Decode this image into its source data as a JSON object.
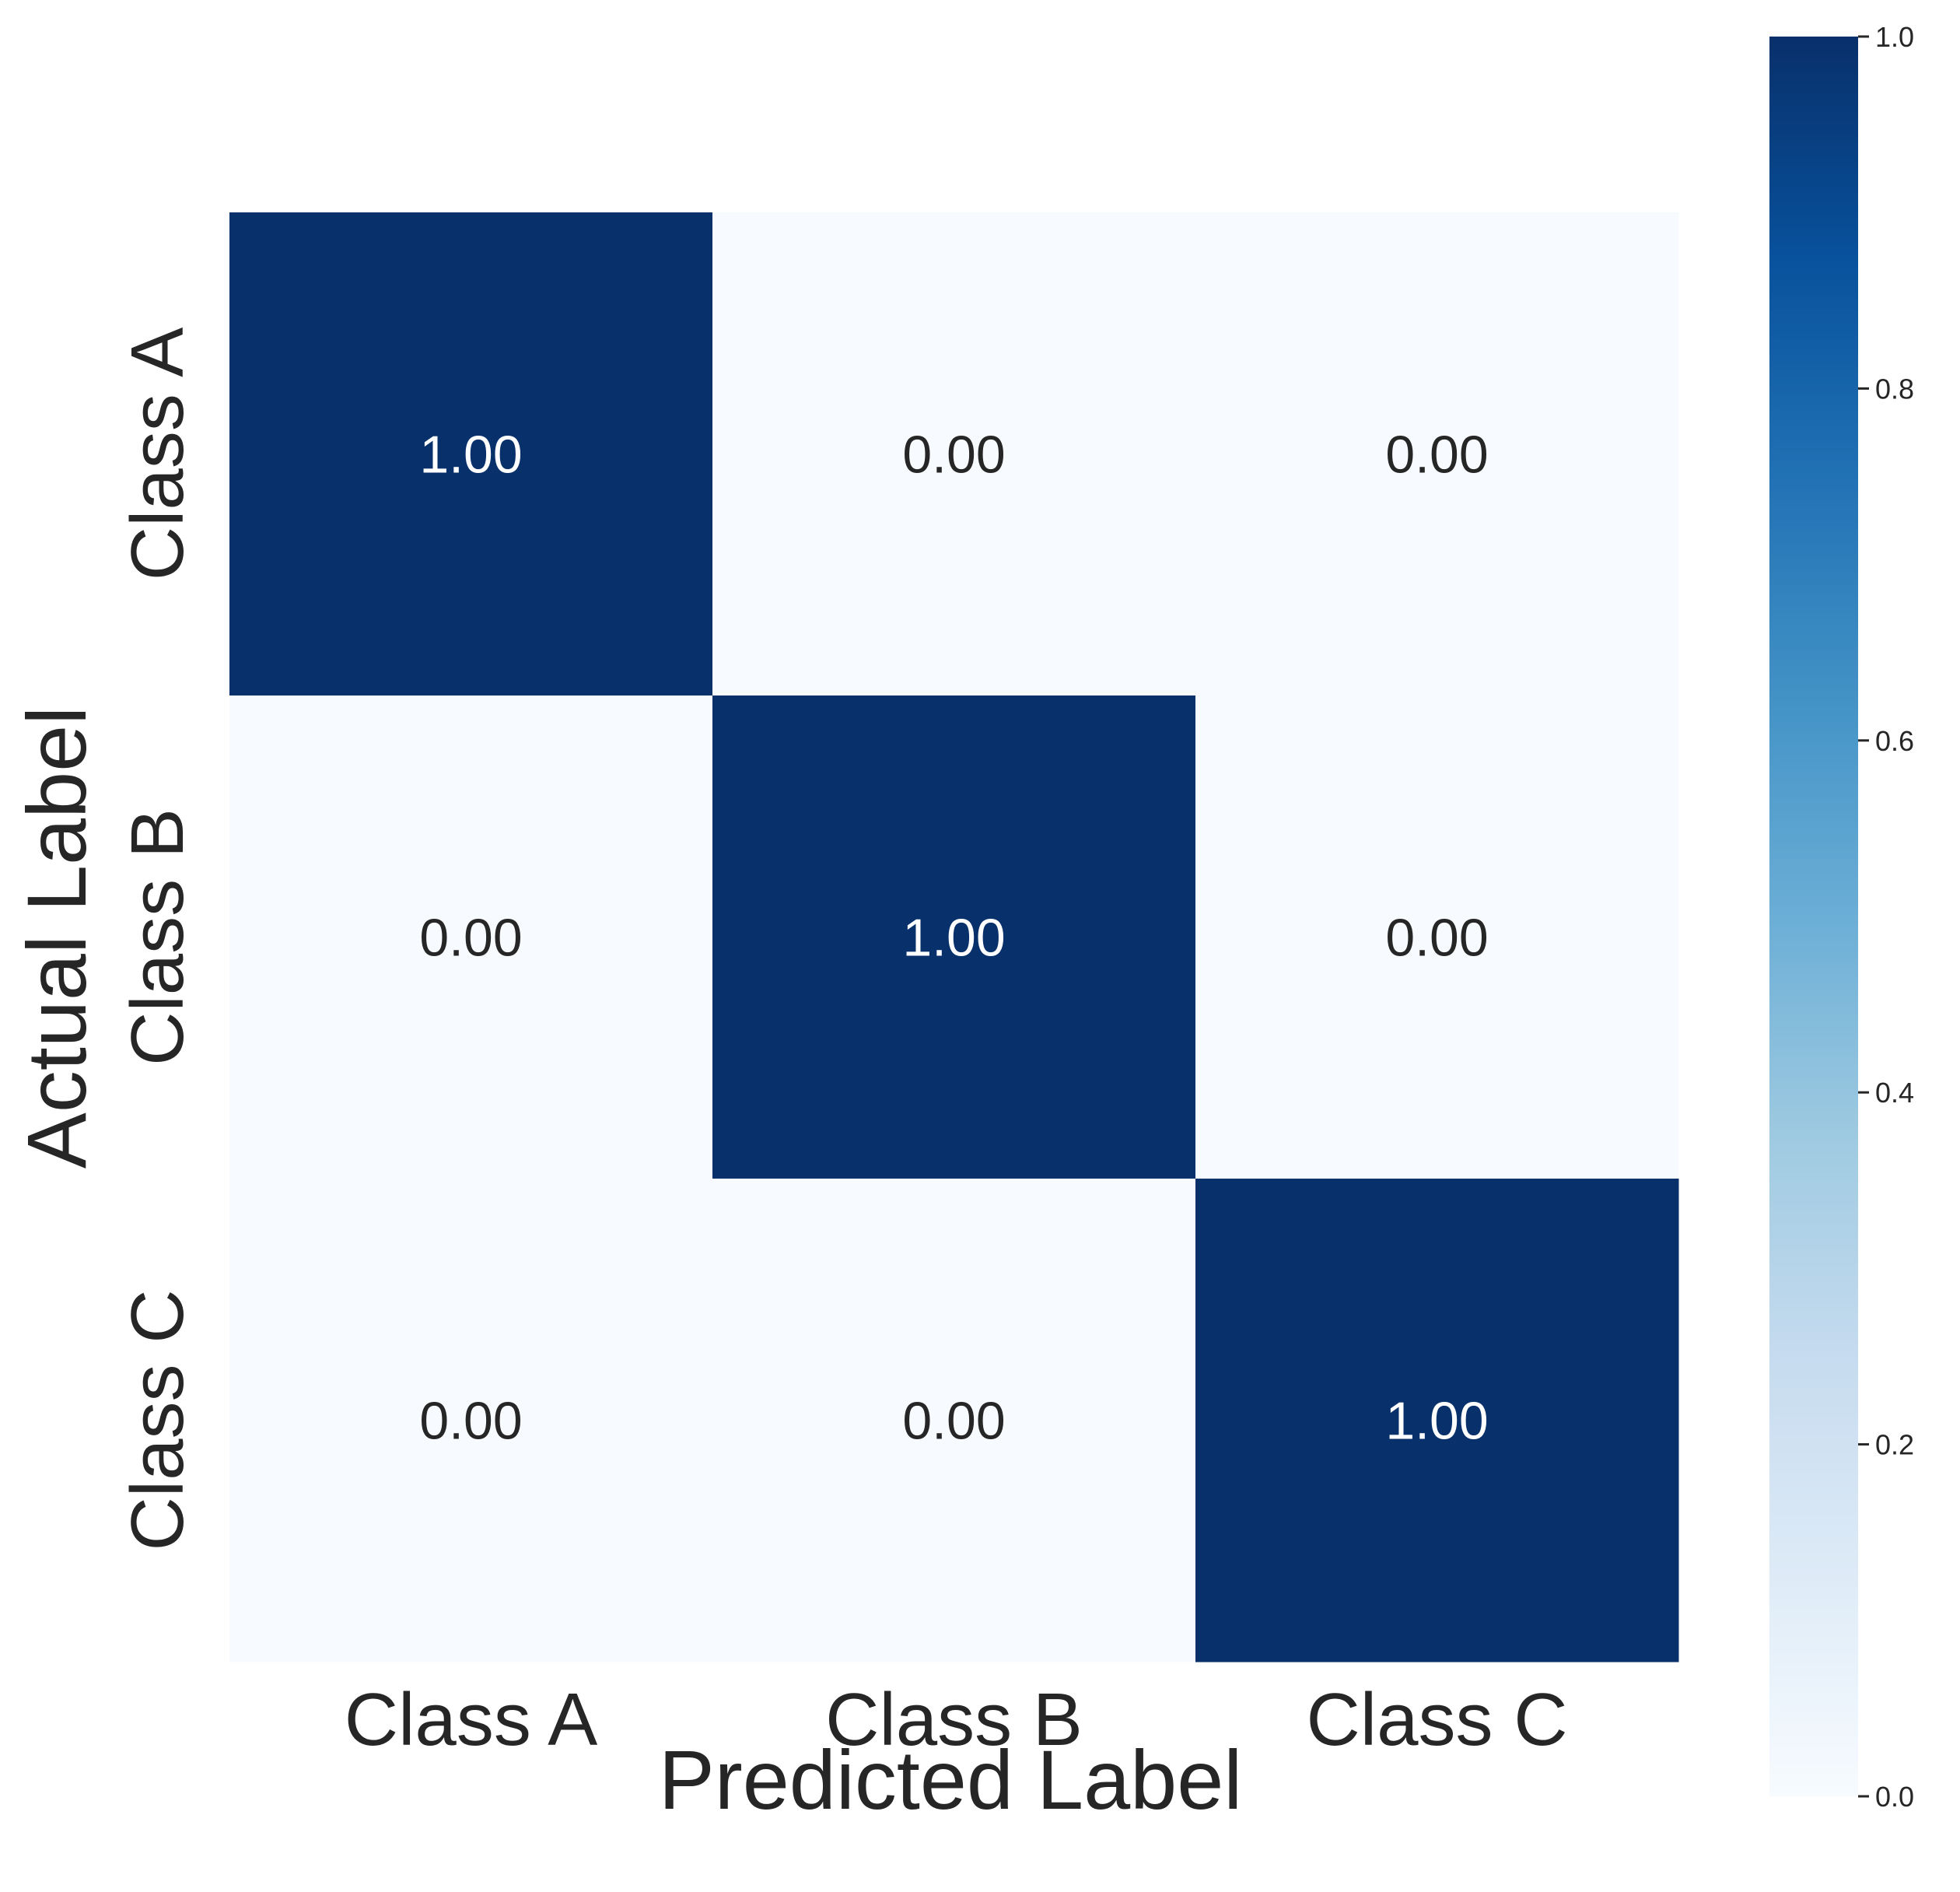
{
  "chart_data": {
    "type": "heatmap",
    "title": "",
    "xlabel": "Predicted Label",
    "ylabel": "Actual Label",
    "x_categories": [
      "Class A",
      "Class B",
      "Class C"
    ],
    "y_categories": [
      "Class A",
      "Class B",
      "Class C"
    ],
    "values": [
      [
        1.0,
        0.0,
        0.0
      ],
      [
        0.0,
        1.0,
        0.0
      ],
      [
        0.0,
        0.0,
        1.0
      ]
    ],
    "annotations": [
      [
        "1.00",
        "0.00",
        "0.00"
      ],
      [
        "0.00",
        "1.00",
        "0.00"
      ],
      [
        "0.00",
        "0.00",
        "1.00"
      ]
    ],
    "colorbar": {
      "range": [
        0.0,
        1.0
      ],
      "ticks": [
        0.0,
        0.2,
        0.4,
        0.6,
        0.8,
        1.0
      ],
      "tick_labels": [
        "0.0",
        "0.2",
        "0.4",
        "0.6",
        "0.8",
        "1.0"
      ],
      "colormap": "Blues",
      "low_color": "#f7fbff",
      "high_color": "#08306b"
    },
    "grid": false
  }
}
